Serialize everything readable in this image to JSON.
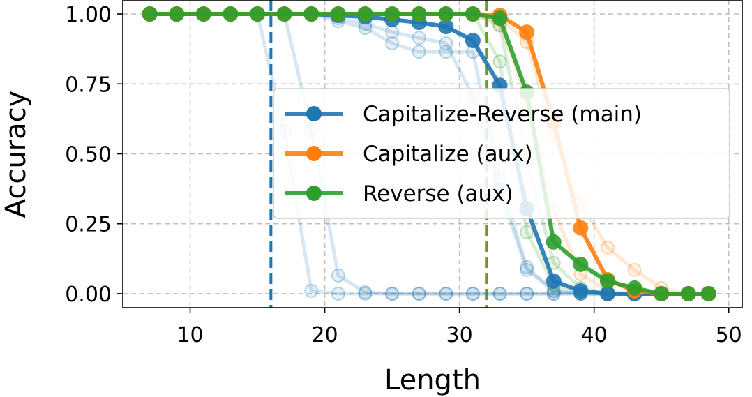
{
  "chart_data": {
    "type": "line",
    "title": "",
    "xlabel": "Length",
    "ylabel": "Accuracy",
    "xlim": [
      5,
      51
    ],
    "ylim": [
      -0.05,
      1.05
    ],
    "xticks": [
      10,
      20,
      30,
      40,
      50
    ],
    "xtick_labels": [
      "10",
      "20",
      "30",
      "40",
      "50"
    ],
    "yticks": [
      0,
      0.25,
      0.5,
      0.75,
      1.0
    ],
    "ytick_labels": [
      "0.00",
      "0.25",
      "0.50",
      "0.75",
      "1.00"
    ],
    "grid": true,
    "legend_position": "center-right",
    "vlines": [
      {
        "x": 16,
        "color": "#1f77b4"
      },
      {
        "x": 32,
        "color": "#6b9a2a"
      }
    ],
    "series": [
      {
        "name": "Capitalize-Reverse (main)",
        "color": "#1f77b4",
        "points": [
          [
            7,
            1.0
          ],
          [
            9,
            1.0
          ],
          [
            11,
            1.0
          ],
          [
            13,
            1.0
          ],
          [
            15,
            1.0
          ],
          [
            17,
            1.0
          ],
          [
            19,
            1.0
          ],
          [
            21,
            0.995
          ],
          [
            23,
            0.99
          ],
          [
            25,
            0.98
          ],
          [
            27,
            0.97
          ],
          [
            29,
            0.955
          ],
          [
            31,
            0.905
          ],
          [
            33,
            0.745
          ],
          [
            35,
            0.305
          ],
          [
            37,
            0.045
          ],
          [
            39,
            0.01
          ],
          [
            41,
            0.0
          ],
          [
            43,
            0.0
          ],
          [
            45,
            0.0
          ],
          [
            47,
            0.0
          ],
          [
            48.5,
            0.0
          ]
        ]
      },
      {
        "name": "Capitalize (aux)",
        "color": "#ff7f0e",
        "points": [
          [
            7,
            1.0
          ],
          [
            9,
            1.0
          ],
          [
            11,
            1.0
          ],
          [
            13,
            1.0
          ],
          [
            15,
            1.0
          ],
          [
            17,
            1.0
          ],
          [
            19,
            1.0
          ],
          [
            21,
            1.0
          ],
          [
            23,
            1.0
          ],
          [
            25,
            1.0
          ],
          [
            27,
            1.0
          ],
          [
            29,
            1.0
          ],
          [
            31,
            1.0
          ],
          [
            33,
            0.995
          ],
          [
            35,
            0.935
          ],
          [
            37,
            0.615
          ],
          [
            39,
            0.235
          ],
          [
            41,
            0.05
          ],
          [
            43,
            0.01
          ],
          [
            45,
            0.0
          ],
          [
            47,
            0.0
          ],
          [
            48.5,
            0.0
          ]
        ]
      },
      {
        "name": "Reverse (aux)",
        "color": "#2ca02c",
        "points": [
          [
            7,
            1.0
          ],
          [
            9,
            1.0
          ],
          [
            11,
            1.0
          ],
          [
            13,
            1.0
          ],
          [
            15,
            1.0
          ],
          [
            17,
            1.0
          ],
          [
            19,
            1.0
          ],
          [
            21,
            1.0
          ],
          [
            23,
            1.0
          ],
          [
            25,
            1.0
          ],
          [
            27,
            1.0
          ],
          [
            29,
            1.0
          ],
          [
            31,
            1.0
          ],
          [
            33,
            0.985
          ],
          [
            35,
            0.72
          ],
          [
            37,
            0.185
          ],
          [
            39,
            0.105
          ],
          [
            41,
            0.045
          ],
          [
            43,
            0.02
          ],
          [
            45,
            0.0
          ],
          [
            47,
            0.0
          ],
          [
            48.5,
            0.0
          ]
        ]
      }
    ],
    "faded_runs": [
      {
        "color": "#1f77b4",
        "points": [
          [
            7,
            1.0
          ],
          [
            9,
            1.0
          ],
          [
            11,
            1.0
          ],
          [
            13,
            1.0
          ],
          [
            15,
            1.0
          ],
          [
            17,
            0.58
          ],
          [
            19,
            0.01
          ],
          [
            21,
            0.0
          ],
          [
            23,
            0.0
          ],
          [
            25,
            0.0
          ],
          [
            27,
            0.0
          ],
          [
            29,
            0.0
          ],
          [
            31,
            0.0
          ],
          [
            33,
            0.0
          ],
          [
            35,
            0.0
          ],
          [
            37,
            0.0
          ],
          [
            39,
            0.0
          ],
          [
            41,
            0.0
          ],
          [
            43,
            0.0
          ],
          [
            45,
            0.0
          ],
          [
            47,
            0.0
          ]
        ]
      },
      {
        "color": "#1f77b4",
        "points": [
          [
            7,
            1.0
          ],
          [
            9,
            1.0
          ],
          [
            11,
            1.0
          ],
          [
            13,
            1.0
          ],
          [
            15,
            1.0
          ],
          [
            17,
            1.0
          ],
          [
            19,
            0.585
          ],
          [
            21,
            0.065
          ],
          [
            23,
            0.005
          ],
          [
            25,
            0.0
          ],
          [
            27,
            0.0
          ],
          [
            29,
            0.0
          ],
          [
            31,
            0.0
          ],
          [
            33,
            0.0
          ],
          [
            35,
            0.0
          ],
          [
            37,
            0.0
          ],
          [
            39,
            0.0
          ],
          [
            41,
            0.0
          ],
          [
            43,
            0.0
          ],
          [
            45,
            0.0
          ],
          [
            47,
            0.0
          ]
        ]
      },
      {
        "color": "#1f77b4",
        "points": [
          [
            7,
            1.0
          ],
          [
            9,
            1.0
          ],
          [
            11,
            1.0
          ],
          [
            13,
            1.0
          ],
          [
            15,
            1.0
          ],
          [
            17,
            1.0
          ],
          [
            19,
            1.0
          ],
          [
            21,
            0.975
          ],
          [
            23,
            0.95
          ],
          [
            25,
            0.895
          ],
          [
            27,
            0.865
          ],
          [
            29,
            0.865
          ],
          [
            31,
            0.865
          ],
          [
            33,
            0.415
          ],
          [
            35,
            0.095
          ],
          [
            37,
            0.01
          ],
          [
            39,
            0.0
          ],
          [
            41,
            0.0
          ],
          [
            43,
            0.0
          ],
          [
            45,
            0.0
          ],
          [
            47,
            0.0
          ]
        ]
      },
      {
        "color": "#1f77b4",
        "points": [
          [
            7,
            1.0
          ],
          [
            9,
            1.0
          ],
          [
            11,
            1.0
          ],
          [
            13,
            1.0
          ],
          [
            15,
            1.0
          ],
          [
            17,
            1.0
          ],
          [
            19,
            1.0
          ],
          [
            21,
            0.985
          ],
          [
            23,
            0.965
          ],
          [
            25,
            0.935
          ],
          [
            27,
            0.915
          ],
          [
            29,
            0.895
          ],
          [
            31,
            0.705
          ],
          [
            33,
            0.37
          ],
          [
            35,
            0.085
          ],
          [
            37,
            0.01
          ],
          [
            39,
            0.0
          ],
          [
            41,
            0.0
          ],
          [
            43,
            0.0
          ],
          [
            45,
            0.0
          ],
          [
            47,
            0.0
          ]
        ]
      },
      {
        "color": "#ff7f0e",
        "points": [
          [
            7,
            1.0
          ],
          [
            9,
            1.0
          ],
          [
            11,
            1.0
          ],
          [
            13,
            1.0
          ],
          [
            15,
            1.0
          ],
          [
            17,
            1.0
          ],
          [
            19,
            1.0
          ],
          [
            21,
            1.0
          ],
          [
            23,
            1.0
          ],
          [
            25,
            1.0
          ],
          [
            27,
            1.0
          ],
          [
            29,
            1.0
          ],
          [
            31,
            1.0
          ],
          [
            33,
            0.985
          ],
          [
            35,
            0.9
          ],
          [
            37,
            0.565
          ],
          [
            39,
            0.325
          ],
          [
            41,
            0.165
          ],
          [
            43,
            0.085
          ],
          [
            45,
            0.02
          ],
          [
            47,
            0.0
          ]
        ]
      },
      {
        "color": "#ff7f0e",
        "points": [
          [
            7,
            1.0
          ],
          [
            9,
            1.0
          ],
          [
            11,
            1.0
          ],
          [
            13,
            1.0
          ],
          [
            15,
            1.0
          ],
          [
            17,
            1.0
          ],
          [
            19,
            1.0
          ],
          [
            21,
            1.0
          ],
          [
            23,
            1.0
          ],
          [
            25,
            1.0
          ],
          [
            27,
            1.0
          ],
          [
            29,
            1.0
          ],
          [
            31,
            1.0
          ],
          [
            33,
            0.96
          ],
          [
            35,
            0.7
          ],
          [
            37,
            0.3
          ],
          [
            39,
            0.07
          ],
          [
            41,
            0.01
          ],
          [
            43,
            0.0
          ],
          [
            45,
            0.0
          ],
          [
            47,
            0.0
          ]
        ]
      },
      {
        "color": "#2ca02c",
        "points": [
          [
            7,
            1.0
          ],
          [
            9,
            1.0
          ],
          [
            11,
            1.0
          ],
          [
            13,
            1.0
          ],
          [
            15,
            1.0
          ],
          [
            17,
            1.0
          ],
          [
            19,
            1.0
          ],
          [
            21,
            1.0
          ],
          [
            23,
            1.0
          ],
          [
            25,
            1.0
          ],
          [
            27,
            1.0
          ],
          [
            29,
            1.0
          ],
          [
            31,
            1.0
          ],
          [
            33,
            0.83
          ],
          [
            35,
            0.22
          ],
          [
            37,
            0.03
          ],
          [
            39,
            0.005
          ],
          [
            41,
            0.0
          ],
          [
            43,
            0.0
          ],
          [
            45,
            0.0
          ],
          [
            47,
            0.0
          ]
        ]
      },
      {
        "color": "#2ca02c",
        "points": [
          [
            7,
            1.0
          ],
          [
            9,
            1.0
          ],
          [
            11,
            1.0
          ],
          [
            13,
            1.0
          ],
          [
            15,
            1.0
          ],
          [
            17,
            1.0
          ],
          [
            19,
            1.0
          ],
          [
            21,
            1.0
          ],
          [
            23,
            1.0
          ],
          [
            25,
            1.0
          ],
          [
            27,
            1.0
          ],
          [
            29,
            1.0
          ],
          [
            31,
            1.0
          ],
          [
            33,
            0.96
          ],
          [
            35,
            0.475
          ],
          [
            37,
            0.11
          ],
          [
            39,
            0.02
          ],
          [
            41,
            0.0
          ],
          [
            43,
            0.0
          ],
          [
            45,
            0.0
          ],
          [
            47,
            0.0
          ]
        ]
      }
    ]
  }
}
